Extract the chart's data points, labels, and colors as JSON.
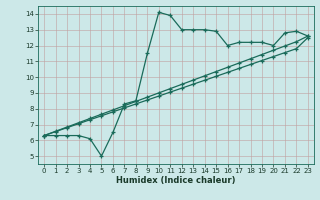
{
  "xlabel": "Humidex (Indice chaleur)",
  "bg_color": "#cce8e8",
  "line_color": "#1a6b5a",
  "grid_color": "#b0c8c8",
  "xlim": [
    -0.5,
    23.5
  ],
  "ylim": [
    4.5,
    14.5
  ],
  "xticks": [
    0,
    1,
    2,
    3,
    4,
    5,
    6,
    7,
    8,
    9,
    10,
    11,
    12,
    13,
    14,
    15,
    16,
    17,
    18,
    19,
    20,
    21,
    22,
    23
  ],
  "yticks": [
    5,
    6,
    7,
    8,
    9,
    10,
    11,
    12,
    13,
    14
  ],
  "series1_x": [
    0,
    1,
    2,
    3,
    4,
    5,
    6,
    7,
    8,
    9,
    10,
    11,
    12,
    13,
    14,
    15,
    16,
    17,
    18,
    19,
    20,
    21,
    22,
    23
  ],
  "series1_y": [
    6.3,
    6.3,
    6.3,
    6.3,
    6.1,
    5.0,
    6.5,
    8.3,
    8.5,
    11.5,
    14.1,
    13.9,
    13.0,
    13.0,
    13.0,
    12.9,
    12.0,
    12.2,
    12.2,
    12.2,
    12.0,
    12.8,
    12.9,
    12.6
  ],
  "series2_x": [
    0,
    1,
    2,
    3,
    4,
    5,
    6,
    7,
    8,
    9,
    10,
    11,
    12,
    13,
    14,
    15,
    16,
    17,
    18,
    19,
    20,
    21,
    22,
    23
  ],
  "series2_y": [
    6.3,
    6.55,
    6.8,
    7.05,
    7.3,
    7.55,
    7.8,
    8.05,
    8.3,
    8.55,
    8.8,
    9.05,
    9.3,
    9.55,
    9.8,
    10.05,
    10.3,
    10.55,
    10.8,
    11.05,
    11.3,
    11.55,
    11.8,
    12.5
  ],
  "series3_x": [
    0,
    1,
    2,
    3,
    4,
    5,
    6,
    7,
    8,
    9,
    10,
    11,
    12,
    13,
    14,
    15,
    16,
    17,
    18,
    19,
    20,
    21,
    22,
    23
  ],
  "series3_y": [
    6.3,
    6.57,
    6.84,
    7.11,
    7.38,
    7.65,
    7.92,
    8.19,
    8.46,
    8.73,
    9.0,
    9.27,
    9.54,
    9.81,
    10.08,
    10.35,
    10.62,
    10.89,
    11.16,
    11.43,
    11.7,
    11.97,
    12.24,
    12.6
  ]
}
